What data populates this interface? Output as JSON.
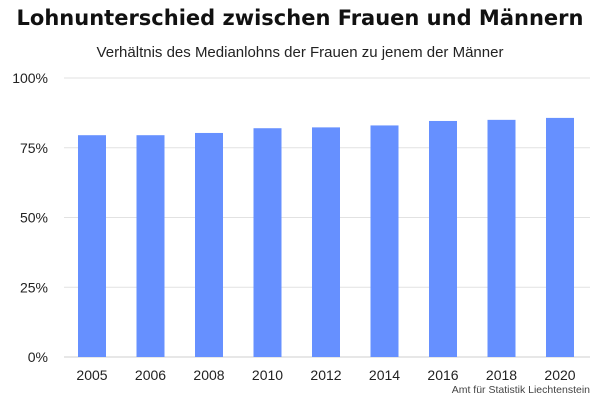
{
  "chart_data": {
    "type": "bar",
    "title": "Lohnunterschied zwischen Frauen und Männern",
    "subtitle": "Verhältnis des Medianlohns der Frauen zu jenem der Männer",
    "categories": [
      "2005",
      "2006",
      "2008",
      "2010",
      "2012",
      "2014",
      "2016",
      "2018",
      "2020"
    ],
    "series": [
      {
        "values": [
          79.5,
          79.5,
          80.3,
          82.0,
          82.3,
          83.0,
          84.6,
          85.0,
          85.7
        ]
      }
    ],
    "yticks": [
      0,
      25,
      50,
      75,
      100
    ],
    "ytick_labels": [
      "0%",
      "25%",
      "50%",
      "75%",
      "100%"
    ],
    "ylim": [
      0,
      100
    ],
    "grid": true,
    "legend": "none",
    "bar_color": "#6690ff",
    "grid_color": "#e2e2e2",
    "source": "Amt für Statistik Liechtenstein"
  }
}
